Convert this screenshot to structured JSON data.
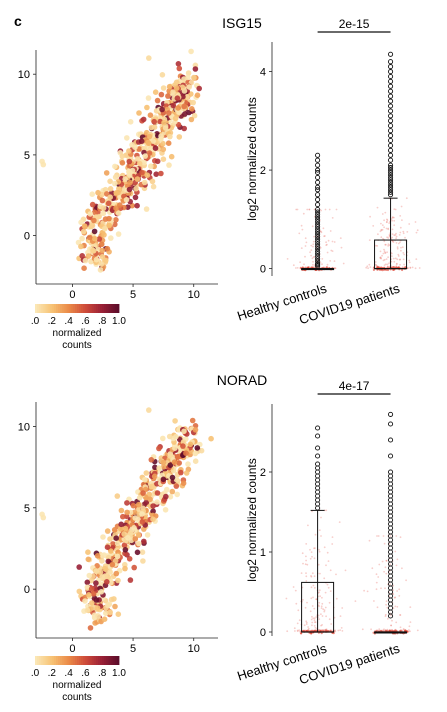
{
  "panel_label": "c",
  "colorbar": {
    "tick_labels": [
      ".0",
      ".2",
      ".4",
      ".6",
      ".8",
      "1.0"
    ],
    "title_line1": "normalized",
    "title_line2": "counts",
    "colors": [
      "#fbe7b5",
      "#f7c173",
      "#ea8a48",
      "#cf4c3a",
      "#9b2136",
      "#5e0d2b"
    ]
  },
  "chart_data": [
    {
      "type": "scatter",
      "title": "ISG15",
      "xlim": [
        -3,
        12
      ],
      "ylim": [
        -3,
        11.5
      ],
      "xticks": [
        0,
        5,
        10
      ],
      "yticks": [
        0,
        5,
        10
      ],
      "color_scale": [
        0,
        1
      ],
      "layout": "umap"
    },
    {
      "type": "box",
      "title": "ISG15",
      "ylabel": "log2 normalized counts",
      "categories": [
        "Healthy controls",
        "COVID19 patients"
      ],
      "ylim": [
        -0.15,
        4.6
      ],
      "yticks": [
        0,
        2,
        4
      ],
      "pvalue": "2e-15",
      "boxes": [
        {
          "q1": 0.0,
          "median": 0.0,
          "q3": 0.0,
          "whisker_low": 0.0,
          "whisker_high": 0.0,
          "outliers": [
            0.05,
            0.08,
            0.1,
            0.15,
            0.2,
            0.25,
            0.3,
            0.35,
            0.4,
            0.45,
            0.5,
            0.55,
            0.6,
            0.65,
            0.7,
            0.75,
            0.8,
            0.85,
            0.9,
            0.95,
            1.0,
            1.05,
            1.1,
            1.15,
            1.2,
            1.3,
            1.4,
            1.5,
            1.6,
            1.65,
            1.75,
            1.85,
            1.95,
            2.0,
            2.1,
            2.2,
            2.3
          ]
        },
        {
          "q1": 0.0,
          "median": 0.0,
          "q3": 0.58,
          "whisker_low": 0.0,
          "whisker_high": 1.43,
          "outliers": [
            1.5,
            1.55,
            1.6,
            1.65,
            1.7,
            1.75,
            1.8,
            1.85,
            1.9,
            1.95,
            2.0,
            2.05,
            2.1,
            2.2,
            2.3,
            2.4,
            2.5,
            2.6,
            2.7,
            2.8,
            2.9,
            3.0,
            3.1,
            3.2,
            3.3,
            3.4,
            3.5,
            3.6,
            3.7,
            3.8,
            3.9,
            4.0,
            4.1,
            4.2,
            4.35
          ]
        }
      ]
    },
    {
      "type": "scatter",
      "title": "NORAD",
      "xlim": [
        -3,
        12
      ],
      "ylim": [
        -3,
        11.5
      ],
      "xticks": [
        0,
        5,
        10
      ],
      "yticks": [
        0,
        5,
        10
      ],
      "color_scale": [
        0,
        1
      ],
      "layout": "umap"
    },
    {
      "type": "box",
      "title": "NORAD",
      "ylabel": "log2 normalized counts",
      "categories": [
        "Healthy controls",
        "COVID19 patients"
      ],
      "ylim": [
        -0.05,
        2.85
      ],
      "yticks": [
        0,
        1,
        2
      ],
      "pvalue": "4e-17",
      "boxes": [
        {
          "q1": 0.0,
          "median": 0.0,
          "q3": 0.62,
          "whisker_low": 0.0,
          "whisker_high": 1.52,
          "outliers": [
            1.55,
            1.6,
            1.65,
            1.7,
            1.75,
            1.8,
            1.85,
            1.9,
            1.95,
            2.0,
            2.05,
            2.1,
            2.2,
            2.3,
            2.45,
            2.55
          ]
        },
        {
          "q1": 0.0,
          "median": 0.0,
          "q3": 0.0,
          "whisker_low": 0.0,
          "whisker_high": 0.0,
          "outliers": [
            0.2,
            0.25,
            0.3,
            0.35,
            0.4,
            0.45,
            0.5,
            0.55,
            0.6,
            0.65,
            0.7,
            0.75,
            0.8,
            0.85,
            0.9,
            0.95,
            1.0,
            1.05,
            1.1,
            1.15,
            1.2,
            1.25,
            1.3,
            1.35,
            1.4,
            1.45,
            1.5,
            1.55,
            1.6,
            1.65,
            1.7,
            1.75,
            1.8,
            1.85,
            1.9,
            1.95,
            2.0,
            2.2,
            2.4,
            2.6,
            2.72
          ]
        }
      ]
    }
  ]
}
